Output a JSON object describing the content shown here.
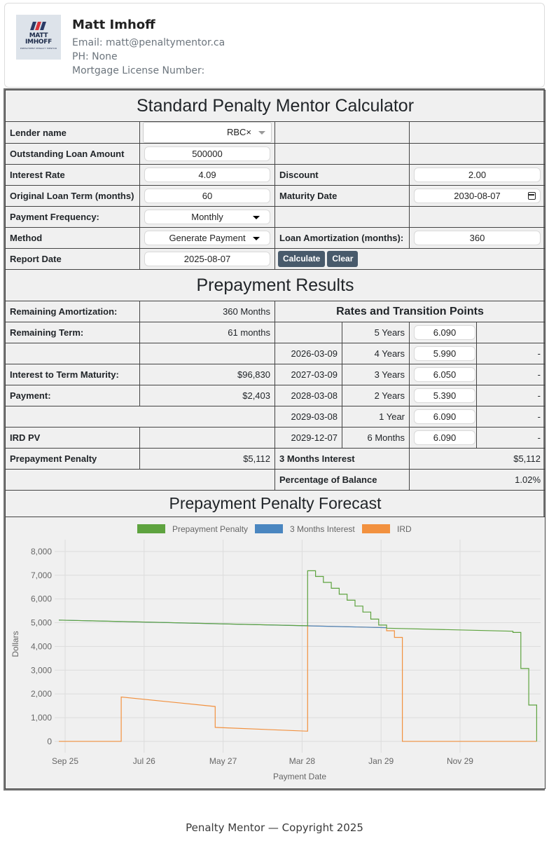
{
  "profile": {
    "logo_text_line1": "MATT",
    "logo_text_line2": "IMHOFF",
    "logo_tagline": "PREPAYMENT PENALTY MENTOR",
    "logo_colors": [
      "#2a3a66",
      "#d9333a",
      "#2a3a66"
    ],
    "name": "Matt Imhoff",
    "email": "Email: matt@penaltymentor.ca",
    "phone": "PH: None",
    "license": "Mortgage License Number:"
  },
  "calculator": {
    "title": "Standard Penalty Mentor Calculator",
    "lender_label": "Lender name",
    "lender_value": "RBC×",
    "loan_label": "Outstanding Loan Amount",
    "loan_value": "500000",
    "rate_label": "Interest Rate",
    "rate_value": "4.09",
    "discount_label": "Discount",
    "discount_value": "2.00",
    "term_label": "Original Loan Term (months)",
    "term_value": "60",
    "maturity_label": "Maturity Date",
    "maturity_value": "2030-08-07",
    "freq_label": "Payment Frequency:",
    "freq_value": "Monthly",
    "method_label": "Method",
    "method_value": "Generate Payment",
    "amort_label": "Loan Amortization (months):",
    "amort_value": "360",
    "report_label": "Report Date",
    "report_value": "2025-08-07",
    "calculate_button": "Calculate",
    "clear_button": "Clear"
  },
  "results": {
    "title": "Prepayment Results",
    "remaining_amort_label": "Remaining Amortization:",
    "remaining_amort_value": "360 Months",
    "rates_title": "Rates and Transition Points",
    "remaining_term_label": "Remaining Term:",
    "remaining_term_value": "61 months",
    "interest_label": "Interest to Term Maturity:",
    "interest_value": "$96,830",
    "payment_label": "Payment:",
    "payment_value": "$2,403",
    "ird_label": "IRD PV",
    "penalty_label": "Prepayment Penalty",
    "penalty_value": "$5,112",
    "three_months_label": "3 Months Interest",
    "three_months_value": "$5,112",
    "pct_label": "Percentage of Balance",
    "pct_value": "1.02%",
    "rates": [
      {
        "date": "",
        "term": "5 Years",
        "rate": "6.090",
        "extra": ""
      },
      {
        "date": "2026-03-09",
        "term": "4 Years",
        "rate": "5.990",
        "extra": "-"
      },
      {
        "date": "2027-03-09",
        "term": "3 Years",
        "rate": "6.050",
        "extra": "-"
      },
      {
        "date": "2028-03-08",
        "term": "2 Years",
        "rate": "5.390",
        "extra": "-"
      },
      {
        "date": "2029-03-08",
        "term": "1 Year",
        "rate": "6.090",
        "extra": "-"
      },
      {
        "date": "2029-12-07",
        "term": "6 Months",
        "rate": "6.090",
        "extra": "-"
      }
    ]
  },
  "forecast": {
    "title": "Prepayment Penalty Forecast"
  },
  "chart_data": {
    "type": "line",
    "title": "Prepayment Penalty Forecast",
    "xlabel": "Payment Date",
    "ylabel": "Dollars",
    "ylim": [
      -300,
      8500
    ],
    "yticks": [
      0,
      1000,
      2000,
      3000,
      4000,
      5000,
      6000,
      7000,
      8000
    ],
    "ytick_labels": [
      "0",
      "1,000",
      "2,000",
      "3,000",
      "4,000",
      "5,000",
      "6,000",
      "7,000",
      "8,000"
    ],
    "x_unit": "months after Aug 2025",
    "xlim": [
      0,
      61
    ],
    "xticks": [
      0.8,
      10.8,
      20.8,
      30.8,
      40.8,
      50.8
    ],
    "xtick_labels": [
      "Sep 25",
      "Jul 26",
      "May 27",
      "Mar 28",
      "Jan 29",
      "Nov 29"
    ],
    "legend_position": "top",
    "series": [
      {
        "name": "Prepayment Penalty",
        "color": "#5ea33f",
        "x": [
          0,
          31.5,
          31.5,
          32.5,
          32.5,
          33.5,
          33.5,
          34.5,
          34.5,
          35.5,
          35.5,
          36.5,
          36.5,
          37.5,
          37.5,
          38.5,
          38.5,
          39.5,
          39.5,
          40.5,
          40.5,
          41.5,
          41.5,
          57.5,
          57.5,
          58.5,
          58.5,
          59.5,
          59.5,
          60.5,
          60.5
        ],
        "y": [
          5110,
          4870,
          7190,
          7190,
          6950,
          6950,
          6700,
          6700,
          6450,
          6450,
          6200,
          6200,
          5950,
          5950,
          5700,
          5700,
          5450,
          5450,
          5150,
          5150,
          4900,
          4900,
          4770,
          4640,
          4590,
          4590,
          3070,
          3070,
          1530,
          1530,
          0
        ]
      },
      {
        "name": "3 Months Interest",
        "color": "#4a86c0",
        "x": [
          0,
          41.5
        ],
        "y": [
          5110,
          4790
        ]
      },
      {
        "name": "IRD",
        "color": "#f2913f",
        "x": [
          0,
          7.9,
          7.9,
          19.8,
          19.8,
          31.5,
          31.5,
          41.5,
          41.5,
          42.5,
          42.5,
          43.5,
          43.5,
          60.5
        ],
        "y": [
          0,
          0,
          1870,
          1470,
          590,
          430,
          4870,
          4790,
          4660,
          4660,
          4380,
          4380,
          0,
          0
        ]
      }
    ]
  },
  "footer": {
    "text": "Penalty Mentor — Copyright 2025"
  }
}
